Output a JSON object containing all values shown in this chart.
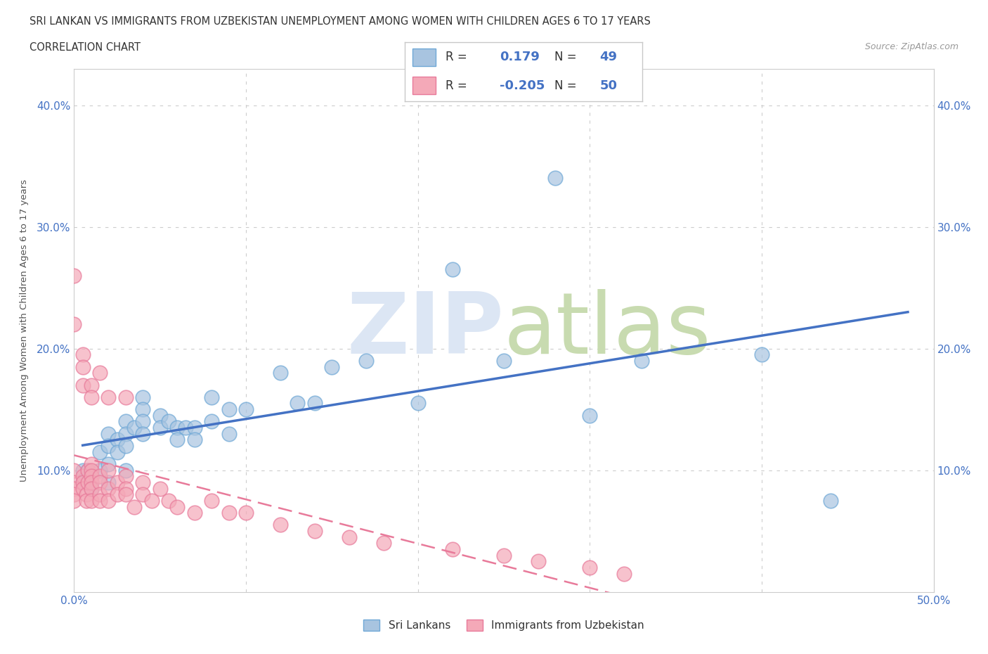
{
  "title_line1": "SRI LANKAN VS IMMIGRANTS FROM UZBEKISTAN UNEMPLOYMENT AMONG WOMEN WITH CHILDREN AGES 6 TO 17 YEARS",
  "title_line2": "CORRELATION CHART",
  "source_text": "Source: ZipAtlas.com",
  "ylabel": "Unemployment Among Women with Children Ages 6 to 17 years",
  "xlim": [
    0.0,
    0.5
  ],
  "ylim": [
    0.0,
    0.43
  ],
  "xticks": [
    0.0,
    0.1,
    0.2,
    0.3,
    0.4,
    0.5
  ],
  "xtick_labels": [
    "0.0%",
    "",
    "",
    "",
    "",
    "50.0%"
  ],
  "yticks": [
    0.0,
    0.1,
    0.2,
    0.3,
    0.4
  ],
  "ytick_labels": [
    "",
    "10.0%",
    "20.0%",
    "30.0%",
    "40.0%"
  ],
  "grid_color": "#cccccc",
  "background_color": "#ffffff",
  "sri_lankan_color": "#a8c4e0",
  "sri_lankan_edge": "#6fa8d6",
  "uzbekistan_color": "#f4a9b8",
  "uzbekistan_edge": "#e87a9a",
  "sri_lankan_line_color": "#4472c4",
  "uzbekistan_line_color": "#e87a9a",
  "legend_label_sri": "Sri Lankans",
  "legend_label_uzb": "Immigrants from Uzbekistan",
  "sri_lankan_R": "0.179",
  "sri_lankan_N": "49",
  "uzbekistan_R": "-0.205",
  "uzbekistan_N": "50",
  "sri_lankan_x": [
    0.005,
    0.005,
    0.008,
    0.01,
    0.01,
    0.01,
    0.015,
    0.015,
    0.02,
    0.02,
    0.02,
    0.02,
    0.025,
    0.025,
    0.03,
    0.03,
    0.03,
    0.03,
    0.035,
    0.04,
    0.04,
    0.04,
    0.04,
    0.05,
    0.05,
    0.055,
    0.06,
    0.06,
    0.065,
    0.07,
    0.07,
    0.08,
    0.08,
    0.09,
    0.09,
    0.1,
    0.12,
    0.13,
    0.14,
    0.15,
    0.17,
    0.2,
    0.22,
    0.25,
    0.28,
    0.3,
    0.33,
    0.4,
    0.44
  ],
  "sri_lankan_y": [
    0.1,
    0.09,
    0.1,
    0.09,
    0.095,
    0.085,
    0.115,
    0.1,
    0.13,
    0.12,
    0.105,
    0.09,
    0.125,
    0.115,
    0.14,
    0.13,
    0.12,
    0.1,
    0.135,
    0.16,
    0.15,
    0.14,
    0.13,
    0.145,
    0.135,
    0.14,
    0.135,
    0.125,
    0.135,
    0.135,
    0.125,
    0.16,
    0.14,
    0.15,
    0.13,
    0.15,
    0.18,
    0.155,
    0.155,
    0.185,
    0.19,
    0.155,
    0.265,
    0.19,
    0.34,
    0.145,
    0.19,
    0.195,
    0.075
  ],
  "uzbekistan_x": [
    0.0,
    0.0,
    0.0,
    0.0,
    0.0,
    0.005,
    0.005,
    0.005,
    0.007,
    0.007,
    0.008,
    0.008,
    0.01,
    0.01,
    0.01,
    0.01,
    0.01,
    0.01,
    0.015,
    0.015,
    0.015,
    0.015,
    0.02,
    0.02,
    0.02,
    0.025,
    0.025,
    0.03,
    0.03,
    0.03,
    0.035,
    0.04,
    0.04,
    0.045,
    0.05,
    0.055,
    0.06,
    0.07,
    0.08,
    0.09,
    0.1,
    0.12,
    0.14,
    0.16,
    0.18,
    0.22,
    0.25,
    0.27,
    0.3,
    0.32
  ],
  "uzbekistan_y": [
    0.1,
    0.09,
    0.085,
    0.08,
    0.075,
    0.095,
    0.09,
    0.085,
    0.08,
    0.075,
    0.1,
    0.09,
    0.105,
    0.1,
    0.095,
    0.09,
    0.085,
    0.075,
    0.095,
    0.09,
    0.08,
    0.075,
    0.1,
    0.085,
    0.075,
    0.09,
    0.08,
    0.095,
    0.085,
    0.08,
    0.07,
    0.09,
    0.08,
    0.075,
    0.085,
    0.075,
    0.07,
    0.065,
    0.075,
    0.065,
    0.065,
    0.055,
    0.05,
    0.045,
    0.04,
    0.035,
    0.03,
    0.025,
    0.02,
    0.015
  ],
  "uzb_outliers_x": [
    0.0,
    0.0,
    0.005,
    0.005,
    0.005,
    0.01,
    0.01,
    0.015,
    0.02,
    0.03
  ],
  "uzb_outliers_y": [
    0.26,
    0.22,
    0.195,
    0.185,
    0.17,
    0.17,
    0.16,
    0.18,
    0.16,
    0.16
  ]
}
